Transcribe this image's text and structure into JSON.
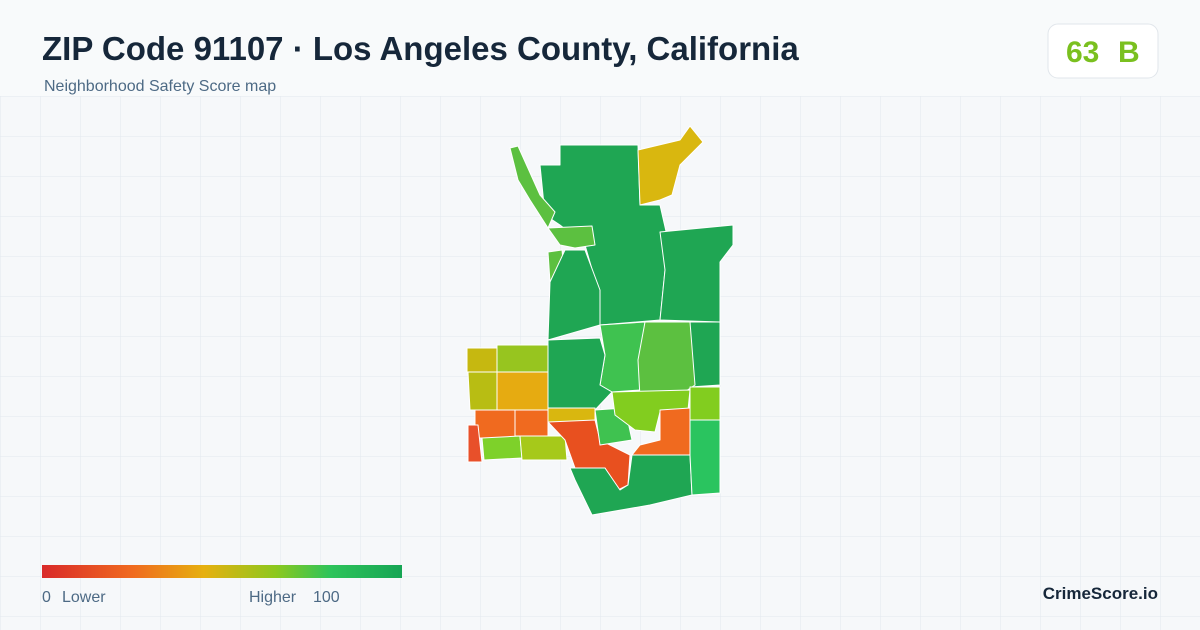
{
  "header": {
    "title": "ZIP Code 91107 · Los Angeles County, California",
    "subtitle": "Neighborhood Safety Score map"
  },
  "score": {
    "value": 63,
    "grade": "B"
  },
  "legend": {
    "min": 0,
    "min_label": "Lower",
    "max_label": "Higher",
    "max": 100
  },
  "brand": "CrimeScore.io"
}
